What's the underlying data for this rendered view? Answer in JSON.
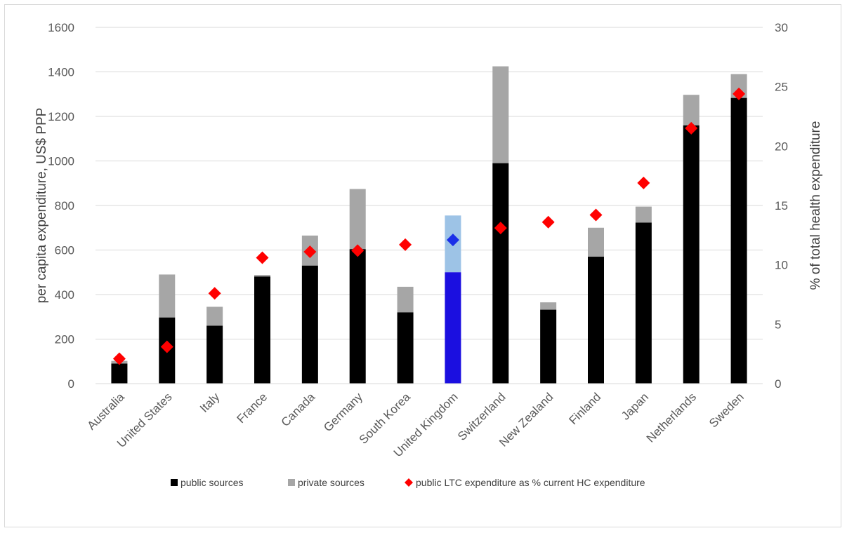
{
  "chart_data": {
    "type": "bar",
    "stacked": true,
    "categories": [
      "Australia",
      "United States",
      "Italy",
      "France",
      "Canada",
      "Germany",
      "South Korea",
      "United Kingdom",
      "Switzerland",
      "New Zealand",
      "Finland",
      "Japan",
      "Netherlands",
      "Sweden"
    ],
    "series": [
      {
        "name": "public sources",
        "axis": "left",
        "values": [
          90,
          297,
          260,
          481,
          530,
          604,
          320,
          500,
          990,
          332,
          570,
          723,
          1160,
          1283
        ]
      },
      {
        "name": "private sources",
        "axis": "left",
        "values": [
          12,
          193,
          85,
          7,
          135,
          270,
          115,
          255,
          435,
          33,
          130,
          72,
          137,
          107
        ]
      },
      {
        "name": "public LTC expenditure as % current HC expenditure",
        "axis": "right",
        "type": "scatter",
        "marker": "diamond",
        "values": [
          2.1,
          3.1,
          7.6,
          10.6,
          11.1,
          11.2,
          11.7,
          12.1,
          13.1,
          13.6,
          14.2,
          16.9,
          21.5,
          24.4
        ]
      }
    ],
    "highlight": {
      "category": "United Kingdom",
      "public_color": "#1b0fe0",
      "private_color": "#9dc3e6",
      "marker_color": "#1a2fe8"
    },
    "colors": {
      "public": "#000000",
      "private": "#a6a6a6",
      "marker": "#ff0000",
      "grid": "#d9d9d9"
    },
    "ylabel": "per capita expenditure, US$ PPP",
    "y2label": "% of total health expenditure",
    "ylim": [
      0,
      1600
    ],
    "y2lim": [
      0,
      30
    ],
    "yticks": [
      "0",
      "200",
      "400",
      "600",
      "800",
      "1000",
      "1200",
      "1400",
      "1600"
    ],
    "y2ticks": [
      "0",
      "5",
      "10",
      "15",
      "20",
      "25",
      "30"
    ],
    "grid": true,
    "legend_position": "bottom"
  }
}
